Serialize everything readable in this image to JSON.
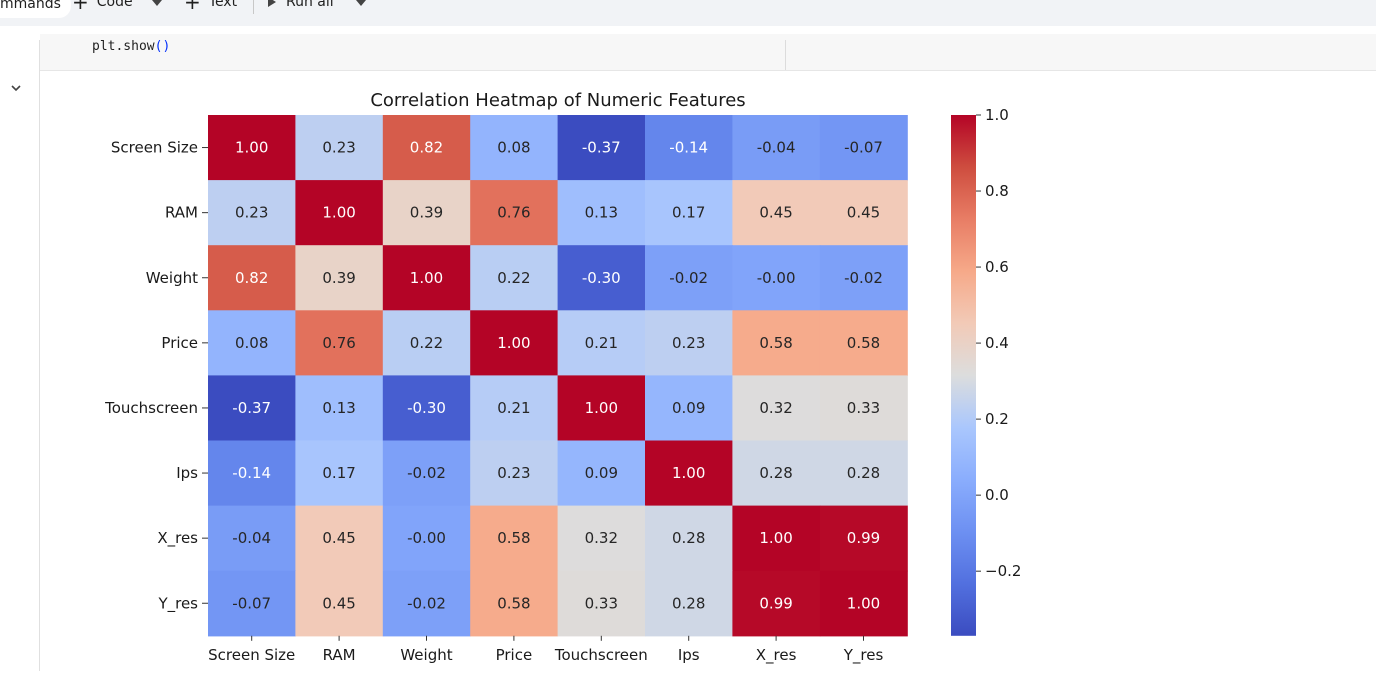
{
  "toolbar": {
    "commands_label": "mmands",
    "code_label": "Code",
    "text_label": "Text",
    "run_all_label": "Run all"
  },
  "code": {
    "fn": "plt.show",
    "parens": "()"
  },
  "chart_data": {
    "type": "heatmap",
    "title": "Correlation Heatmap of Numeric Features",
    "colormap": "coolwarm",
    "labels": [
      "Screen Size",
      "RAM",
      "Weight",
      "Price",
      "Touchscreen",
      "Ips",
      "X_res",
      "Y_res"
    ],
    "matrix": [
      [
        1.0,
        0.23,
        0.82,
        0.08,
        -0.37,
        -0.14,
        -0.04,
        -0.07
      ],
      [
        0.23,
        1.0,
        0.39,
        0.76,
        0.13,
        0.17,
        0.45,
        0.45
      ],
      [
        0.82,
        0.39,
        1.0,
        0.22,
        -0.3,
        -0.02,
        -0.0,
        -0.02
      ],
      [
        0.08,
        0.76,
        0.22,
        1.0,
        0.21,
        0.23,
        0.58,
        0.58
      ],
      [
        -0.37,
        0.13,
        -0.3,
        0.21,
        1.0,
        0.09,
        0.32,
        0.33
      ],
      [
        -0.14,
        0.17,
        -0.02,
        0.23,
        0.09,
        1.0,
        0.28,
        0.28
      ],
      [
        -0.04,
        0.45,
        -0.0,
        0.58,
        0.32,
        0.28,
        1.0,
        0.99
      ],
      [
        -0.07,
        0.45,
        -0.02,
        0.58,
        0.33,
        0.28,
        0.99,
        1.0
      ]
    ],
    "cell_labels": [
      [
        "1.00",
        "0.23",
        "0.82",
        "0.08",
        "-0.37",
        "-0.14",
        "-0.04",
        "-0.07"
      ],
      [
        "0.23",
        "1.00",
        "0.39",
        "0.76",
        "0.13",
        "0.17",
        "0.45",
        "0.45"
      ],
      [
        "0.82",
        "0.39",
        "1.00",
        "0.22",
        "-0.30",
        "-0.02",
        "-0.00",
        "-0.02"
      ],
      [
        "0.08",
        "0.76",
        "0.22",
        "1.00",
        "0.21",
        "0.23",
        "0.58",
        "0.58"
      ],
      [
        "-0.37",
        "0.13",
        "-0.30",
        "0.21",
        "1.00",
        "0.09",
        "0.32",
        "0.33"
      ],
      [
        "-0.14",
        "0.17",
        "-0.02",
        "0.23",
        "0.09",
        "1.00",
        "0.28",
        "0.28"
      ],
      [
        "-0.04",
        "0.45",
        "-0.00",
        "0.58",
        "0.32",
        "0.28",
        "1.00",
        "0.99"
      ],
      [
        "-0.07",
        "0.45",
        "-0.02",
        "0.58",
        "0.33",
        "0.28",
        "0.99",
        "1.00"
      ]
    ],
    "vmin": -0.37,
    "vmax": 1.0,
    "colorbar_ticks": [
      1.0,
      0.8,
      0.6,
      0.4,
      0.2,
      0.0,
      -0.2
    ],
    "colorbar_tick_labels": [
      "1.0",
      "0.8",
      "0.6",
      "0.4",
      "0.2",
      "0.0",
      "−0.2"
    ]
  }
}
